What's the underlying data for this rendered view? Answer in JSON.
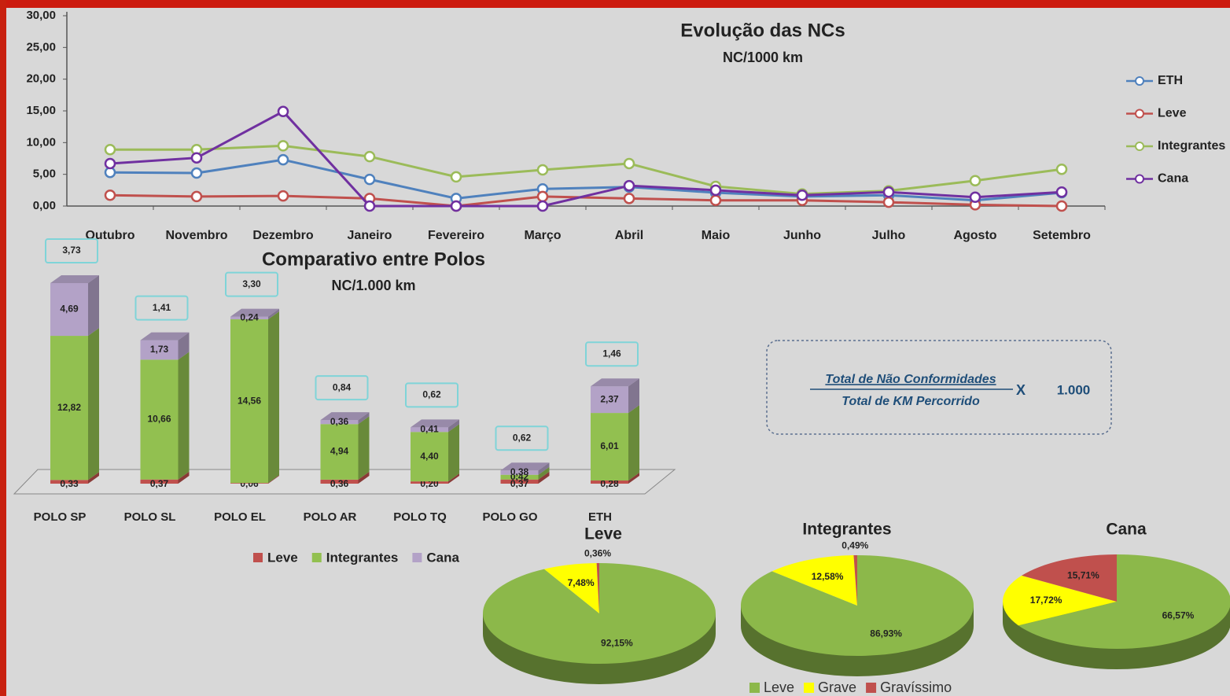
{
  "chart_data": [
    {
      "type": "line",
      "title": "Evolução das NCs",
      "subtitle": "NC/1000 km",
      "categories": [
        "Outubro",
        "Novembro",
        "Dezembro",
        "Janeiro",
        "Fevereiro",
        "Março",
        "Abril",
        "Maio",
        "Junho",
        "Julho",
        "Agosto",
        "Setembro"
      ],
      "series": [
        {
          "name": "ETH",
          "color": "#4f81bd",
          "values": [
            5.3,
            5.2,
            7.3,
            4.2,
            1.2,
            2.7,
            3.0,
            2.1,
            1.5,
            1.7,
            0.9,
            2.1
          ]
        },
        {
          "name": "Leve",
          "color": "#c0504d",
          "values": [
            1.7,
            1.5,
            1.6,
            1.2,
            0,
            1.5,
            1.2,
            0.9,
            0.9,
            0.6,
            0.2,
            0
          ]
        },
        {
          "name": "Integrantes",
          "color": "#9bbb59",
          "values": [
            8.9,
            8.9,
            9.5,
            7.8,
            4.6,
            5.7,
            6.7,
            3.1,
            1.9,
            2.4,
            4.0,
            5.8
          ]
        },
        {
          "name": "Cana",
          "color": "#7030a0",
          "values": [
            6.7,
            7.6,
            14.9,
            0,
            0,
            0,
            3.2,
            2.5,
            1.7,
            2.2,
            1.4,
            2.2
          ]
        }
      ],
      "ylim": [
        0,
        30
      ],
      "yticks": [
        {
          "value": 0,
          "label": "0,00"
        },
        {
          "value": 5,
          "label": "5,00"
        },
        {
          "value": 10,
          "label": "10,00"
        },
        {
          "value": 15,
          "label": "15,00"
        },
        {
          "value": 20,
          "label": "20,00"
        },
        {
          "value": 25,
          "label": "25,00"
        },
        {
          "value": 30,
          "label": "30,00"
        }
      ]
    },
    {
      "type": "bar",
      "stacked": true,
      "title": "Comparativo entre Polos",
      "subtitle": "NC/1.000 km",
      "categories": [
        "POLO SP",
        "POLO SL",
        "POLO EL",
        "POLO AR",
        "POLO TQ",
        "POLO GO",
        "ETH"
      ],
      "series": [
        {
          "name": "Leve",
          "color": "#c0504d",
          "values": [
            0.33,
            0.37,
            0.06,
            0.36,
            0.2,
            0.37,
            0.28
          ],
          "value_labels": [
            "0,33",
            "0,37",
            "0,06",
            "0,36",
            "0,20",
            "0,37",
            "0,28"
          ]
        },
        {
          "name": "Integrantes",
          "color": "#92c050",
          "values": [
            12.82,
            10.66,
            14.56,
            4.94,
            4.4,
            0.42,
            6.01
          ],
          "value_labels": [
            "12,82",
            "10,66",
            "14,56",
            "4,94",
            "4,40",
            "0,42",
            "6,01"
          ]
        },
        {
          "name": "Cana",
          "color": "#b3a2c7",
          "values": [
            4.69,
            1.73,
            0.24,
            0.36,
            0.41,
            0.38,
            2.37
          ],
          "value_labels": [
            "4,69",
            "1,73",
            "0,24",
            "0,36",
            "0,41",
            "0,38",
            "2,37"
          ]
        }
      ],
      "annotations": [
        "3,73",
        "1,41",
        "3,30",
        "0,84",
        "0,62",
        "0,62",
        "1,46"
      ]
    },
    {
      "type": "pie",
      "title": "Leve",
      "categories": [
        "Leve",
        "Grave",
        "Gravíssimo"
      ],
      "colors": [
        "#8cb84a",
        "#ffff00",
        "#c0504d"
      ],
      "values": [
        92.15,
        7.48,
        0.36
      ],
      "value_labels": [
        "92,15%",
        "7,48%",
        "0,36%"
      ]
    },
    {
      "type": "pie",
      "title": "Integrantes",
      "colors": [
        "#8cb84a",
        "#ffff00",
        "#c0504d"
      ],
      "values": [
        86.93,
        12.58,
        0.49
      ],
      "value_labels": [
        "86,93%",
        "12,58%",
        "0,49%"
      ]
    },
    {
      "type": "pie",
      "title": "Cana",
      "colors": [
        "#8cb84a",
        "#ffff00",
        "#c0504d"
      ],
      "values": [
        66.57,
        17.72,
        15.71
      ],
      "value_labels": [
        "66,57%",
        "17,72%",
        "15,71%"
      ]
    }
  ],
  "formula": {
    "numerator": "Total de Não Conformidades",
    "denominator": "Total de KM Percorrido",
    "operator": "X",
    "factor": "1.000"
  }
}
